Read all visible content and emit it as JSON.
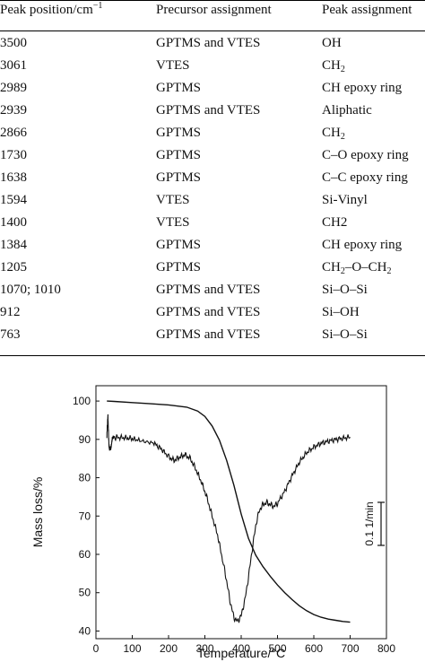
{
  "table": {
    "headers": {
      "peak_position": "Peak position/cm",
      "peak_position_sup": "−1",
      "precursor": "Precursor assignment",
      "peak_assignment": "Peak assignment"
    },
    "rows": [
      {
        "pos": "3500",
        "prec": "GPTMS and VTES",
        "assign": "OH",
        "sub": []
      },
      {
        "pos": "3061",
        "prec": "VTES",
        "assign": "CH",
        "sub": [
          "2"
        ]
      },
      {
        "pos": "2989",
        "prec": "GPTMS",
        "assign": "CH epoxy ring",
        "sub": []
      },
      {
        "pos": "2939",
        "prec": "GPTMS and VTES",
        "assign": "Aliphatic",
        "sub": []
      },
      {
        "pos": "2866",
        "prec": "GPTMS",
        "assign": "CH",
        "sub": [
          "2"
        ]
      },
      {
        "pos": "1730",
        "prec": "GPTMS",
        "assign": "C–O epoxy ring",
        "sub": []
      },
      {
        "pos": "1638",
        "prec": "GPTMS",
        "assign": "C–C epoxy ring",
        "sub": []
      },
      {
        "pos": "1594",
        "prec": "VTES",
        "assign": "Si-Vinyl",
        "sub": []
      },
      {
        "pos": "1400",
        "prec": "VTES",
        "assign": "CH2",
        "sub": []
      },
      {
        "pos": "1384",
        "prec": "GPTMS",
        "assign": "CH epoxy ring",
        "sub": []
      },
      {
        "pos": "1205",
        "prec": "GPTMS",
        "assign": "CH",
        "sub": [
          "2",
          "–O–CH",
          "2"
        ]
      },
      {
        "pos": "1070; 1010",
        "prec": "GPTMS and VTES",
        "assign": "Si–O–Si",
        "sub": []
      },
      {
        "pos": "912",
        "prec": "GPTMS and VTES",
        "assign": "Si–OH",
        "sub": []
      },
      {
        "pos": "763",
        "prec": "GPTMS and VTES",
        "assign": "Si–O–Si",
        "sub": []
      }
    ]
  },
  "chart_data": {
    "type": "line",
    "xlabel": "Temperature/°C",
    "ylabel": "Mass loss/%",
    "xlim": [
      0,
      800
    ],
    "ylim": [
      38,
      104
    ],
    "xticks": [
      "0",
      "100",
      "200",
      "300",
      "400",
      "500",
      "600",
      "700",
      "800"
    ],
    "yticks": [
      "40",
      "50",
      "60",
      "70",
      "80",
      "90",
      "100"
    ],
    "scale_bar_label": "0.1 1/min",
    "series": [
      {
        "kind": "TG",
        "x": [
          30,
          50,
          100,
          150,
          200,
          250,
          280,
          300,
          320,
          340,
          360,
          380,
          400,
          420,
          440,
          460,
          480,
          500,
          520,
          540,
          560,
          580,
          600,
          620,
          640,
          660,
          680,
          700
        ],
        "y": [
          100,
          99.9,
          99.6,
          99.3,
          99.0,
          98.4,
          97.4,
          96,
          93.5,
          89.8,
          84.5,
          78,
          70.5,
          64.2,
          59.8,
          56.8,
          54.3,
          52.0,
          50.0,
          48.2,
          46.6,
          45.3,
          44.3,
          43.6,
          43.1,
          42.8,
          42.5,
          42.3
        ]
      },
      {
        "kind": "DTG",
        "x": [
          30,
          33,
          36,
          40,
          45,
          50,
          60,
          80,
          100,
          130,
          160,
          180,
          200,
          215,
          230,
          245,
          260,
          275,
          290,
          305,
          320,
          335,
          350,
          360,
          370,
          380,
          390,
          400,
          410,
          420,
          430,
          440,
          450,
          460,
          470,
          480,
          490,
          500,
          520,
          540,
          560,
          580,
          600,
          620,
          640,
          660,
          680,
          700
        ],
        "y": [
          91,
          96,
          88,
          87.5,
          90,
          90.5,
          90.5,
          90.4,
          90.2,
          89.5,
          89,
          87.5,
          85.5,
          84.5,
          85.3,
          86,
          85,
          82.2,
          79,
          75,
          70,
          65,
          58,
          53,
          47.5,
          43.5,
          42.5,
          44,
          48,
          54,
          61,
          67.5,
          71.5,
          73,
          73.5,
          73,
          72.5,
          73.3,
          76.5,
          80.5,
          84,
          86.5,
          88,
          89,
          89.5,
          90,
          90.3,
          90.6
        ]
      }
    ]
  }
}
